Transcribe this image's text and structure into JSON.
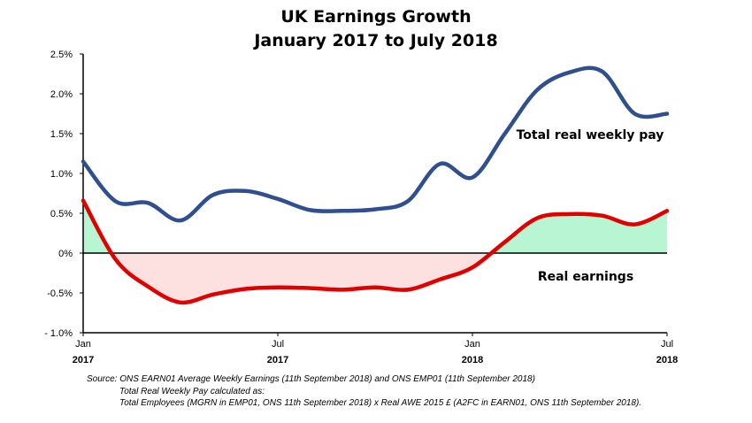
{
  "chart_data": {
    "type": "line",
    "title": "UK Earnings Growth",
    "subtitle": "January 2017 to July 2018",
    "ylim": [
      -1.0,
      2.5
    ],
    "yticks": [
      {
        "v": 2.5,
        "label": "2.5%"
      },
      {
        "v": 2.0,
        "label": "2.0%"
      },
      {
        "v": 1.5,
        "label": "1.5%"
      },
      {
        "v": 1.0,
        "label": "1.0%"
      },
      {
        "v": 0.5,
        "label": "0.5%"
      },
      {
        "v": 0.0,
        "label": "0%"
      },
      {
        "v": -0.5,
        "label": "-0.5%"
      },
      {
        "v": -1.0,
        "label": "- 1.0%"
      }
    ],
    "xlim": [
      0,
      18
    ],
    "xticks": [
      {
        "v": 0,
        "month": "Jan",
        "year": "2017"
      },
      {
        "v": 6,
        "month": "Jul",
        "year": "2017"
      },
      {
        "v": 12,
        "month": "Jan",
        "year": "2018"
      },
      {
        "v": 18,
        "month": "Jul",
        "year": "2018"
      }
    ],
    "grid": false,
    "series": [
      {
        "name": "Total real weekly pay",
        "color": "#2f4f8f",
        "x": [
          0,
          1,
          2,
          3,
          4,
          5,
          6,
          7,
          8,
          9,
          10,
          11,
          12,
          13,
          14,
          15,
          16,
          17,
          18
        ],
        "y": [
          1.15,
          0.65,
          0.63,
          0.41,
          0.73,
          0.78,
          0.68,
          0.54,
          0.53,
          0.55,
          0.65,
          1.12,
          0.95,
          1.5,
          2.05,
          2.27,
          2.28,
          1.75,
          1.75
        ]
      },
      {
        "name": "Real earnings",
        "color": "#e00000",
        "x": [
          0,
          1,
          2,
          3,
          4,
          5,
          6,
          7,
          8,
          9,
          10,
          11,
          12,
          13,
          14,
          15,
          16,
          17,
          18
        ],
        "y": [
          0.66,
          -0.08,
          -0.42,
          -0.62,
          -0.52,
          -0.45,
          -0.43,
          -0.44,
          -0.46,
          -0.43,
          -0.46,
          -0.33,
          -0.18,
          0.14,
          0.44,
          0.49,
          0.47,
          0.36,
          0.53
        ]
      }
    ],
    "annotations": [
      {
        "text": "Total real weekly pay"
      },
      {
        "text": "Real earnings"
      }
    ],
    "fill_colors": {
      "negative": "#fde0e0",
      "positive": "#b8f5d2"
    }
  },
  "source": [
    "Source: ONS EARN01 Average Weekly Earnings (11th September 2018) and ONS EMP01 (11th September 2018)",
    "Total Real Weekly Pay calculated as:",
    "Total Employees (MGRN in EMP01, ONS 11th September 2018) x Real AWE 2015 £ (A2FC in EARN01, ONS 11th September 2018)."
  ]
}
